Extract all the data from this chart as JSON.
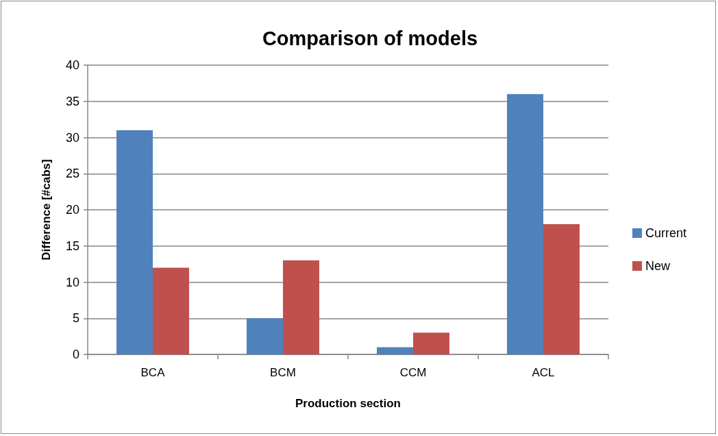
{
  "chart_data": {
    "type": "bar",
    "title": "Comparison of models",
    "xlabel": "Production section",
    "ylabel": "Difference [#cabs]",
    "categories": [
      "BCA",
      "BCM",
      "CCM",
      "ACL"
    ],
    "series": [
      {
        "name": "Current",
        "color": "#4f81bd",
        "values": [
          31,
          5,
          1,
          36
        ]
      },
      {
        "name": "New",
        "color": "#c0504d",
        "values": [
          12,
          13,
          3,
          18
        ]
      }
    ],
    "ylim": [
      0,
      40
    ],
    "yticks": [
      0,
      5,
      10,
      15,
      20,
      25,
      30,
      35,
      40
    ],
    "grid": "y",
    "legend": "right"
  }
}
